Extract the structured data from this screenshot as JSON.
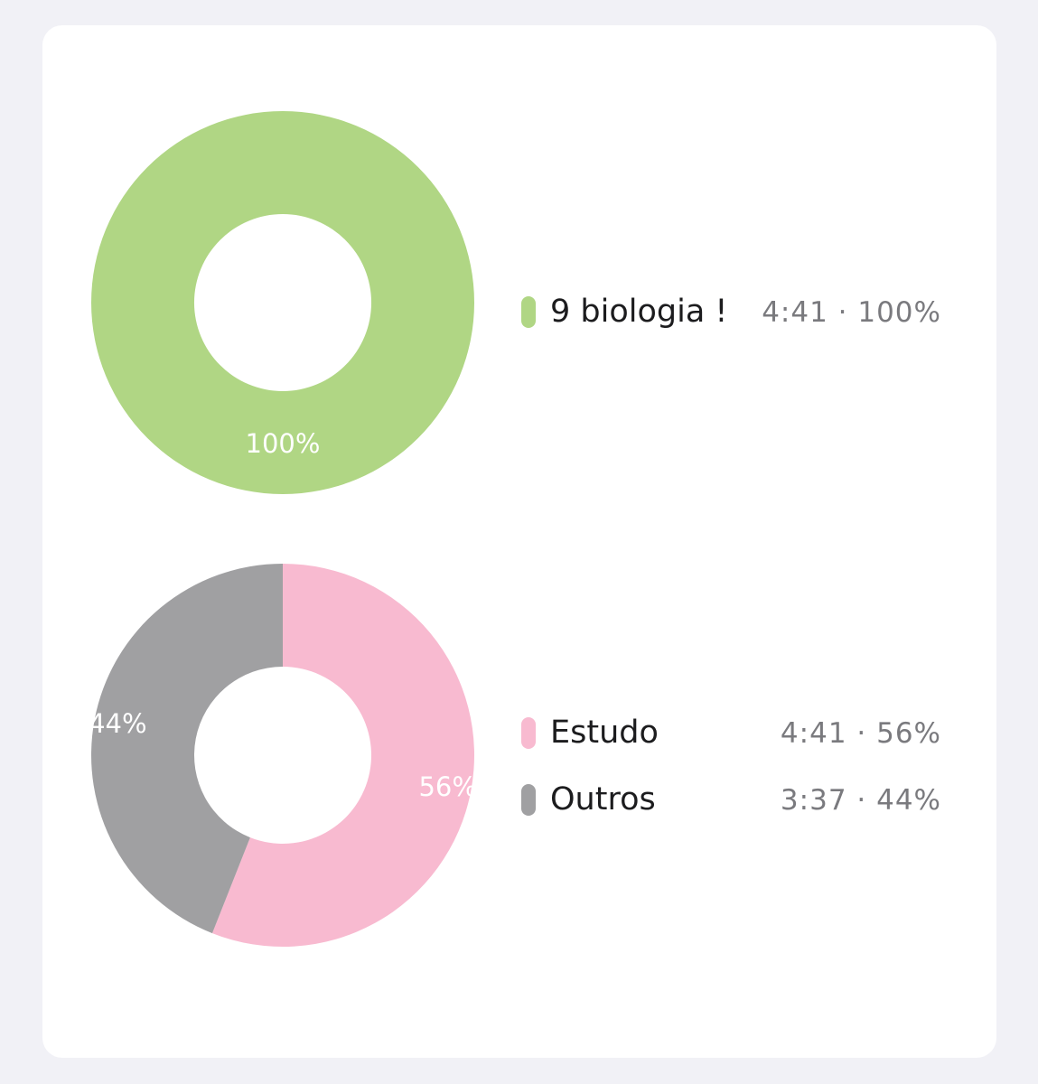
{
  "chart_data": [
    {
      "type": "pie",
      "donut": true,
      "series": [
        {
          "name": "9 biologia !",
          "value": 100,
          "label": "100%",
          "color": "#b0d684",
          "legend_value": "4:41 · 100%"
        }
      ]
    },
    {
      "type": "pie",
      "donut": true,
      "series": [
        {
          "name": "Estudo",
          "value": 56,
          "label": "56%",
          "color": "#f8bad0",
          "legend_value": "4:41 · 56%"
        },
        {
          "name": "Outros",
          "value": 44,
          "label": "44%",
          "color": "#a0a0a2",
          "legend_value": "3:37 · 44%"
        }
      ]
    }
  ],
  "colors": {
    "background": "#f1f1f6",
    "card": "#ffffff",
    "text_primary": "#1c1c1e",
    "text_secondary": "#7a7a7e"
  }
}
